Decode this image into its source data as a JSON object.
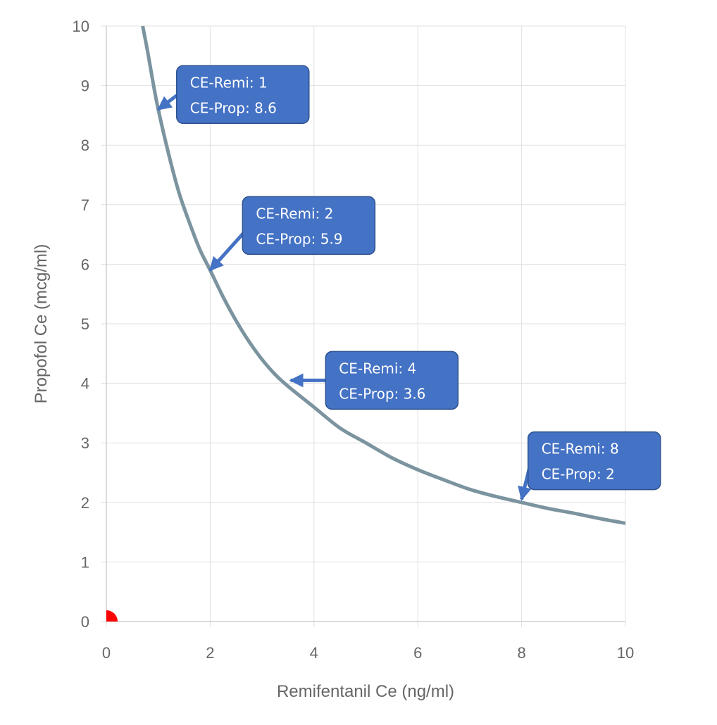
{
  "chart_data": {
    "type": "line",
    "xlabel": "Remifentanil Ce (ng/ml)",
    "ylabel": "Propofol Ce (mcg/ml)",
    "xlim": [
      0,
      10
    ],
    "ylim": [
      0,
      10
    ],
    "x_ticks": [
      "0",
      "2",
      "4",
      "6",
      "8",
      "10"
    ],
    "y_ticks": [
      "0",
      "1",
      "2",
      "3",
      "4",
      "5",
      "6",
      "7",
      "8",
      "9",
      "10"
    ],
    "grid": true,
    "series": [
      {
        "color": "#7b949f",
        "points": [
          [
            0.7,
            10.0
          ],
          [
            0.8,
            9.55
          ],
          [
            0.9,
            9.05
          ],
          [
            1.0,
            8.6
          ],
          [
            1.2,
            7.85
          ],
          [
            1.4,
            7.2
          ],
          [
            1.6,
            6.7
          ],
          [
            1.8,
            6.25
          ],
          [
            2.0,
            5.9
          ],
          [
            2.25,
            5.45
          ],
          [
            2.5,
            5.05
          ],
          [
            2.75,
            4.7
          ],
          [
            3.0,
            4.4
          ],
          [
            3.25,
            4.15
          ],
          [
            3.5,
            3.95
          ],
          [
            4.0,
            3.6
          ],
          [
            4.5,
            3.25
          ],
          [
            5.0,
            3.0
          ],
          [
            5.5,
            2.75
          ],
          [
            6.0,
            2.55
          ],
          [
            6.5,
            2.38
          ],
          [
            7.0,
            2.22
          ],
          [
            7.5,
            2.1
          ],
          [
            8.0,
            2.0
          ],
          [
            8.5,
            1.9
          ],
          [
            9.0,
            1.82
          ],
          [
            9.5,
            1.73
          ],
          [
            10.0,
            1.65
          ]
        ]
      }
    ],
    "marker": {
      "x": 0,
      "y": 0,
      "color": "#ff0000"
    },
    "annotations": [
      {
        "line1": "CE-Remi: 1",
        "line2": "CE-Prop: 8.6",
        "target": [
          1,
          8.6
        ],
        "box_at": [
          1.53,
          8.85
        ]
      },
      {
        "line1": "CE-Remi: 2",
        "line2": "CE-Prop: 5.9",
        "target": [
          2,
          5.9
        ],
        "box_at": [
          2.8,
          6.65
        ]
      },
      {
        "line1": "CE-Remi: 4",
        "line2": "CE-Prop: 3.6",
        "target": [
          3.55,
          4.05
        ],
        "box_at": [
          4.4,
          4.05
        ]
      },
      {
        "line1": "CE-Remi: 8",
        "line2": "CE-Prop: 2",
        "target": [
          8,
          2.05
        ],
        "box_at": [
          8.3,
          2.7
        ]
      }
    ],
    "annotation_color": "#4472c4"
  }
}
